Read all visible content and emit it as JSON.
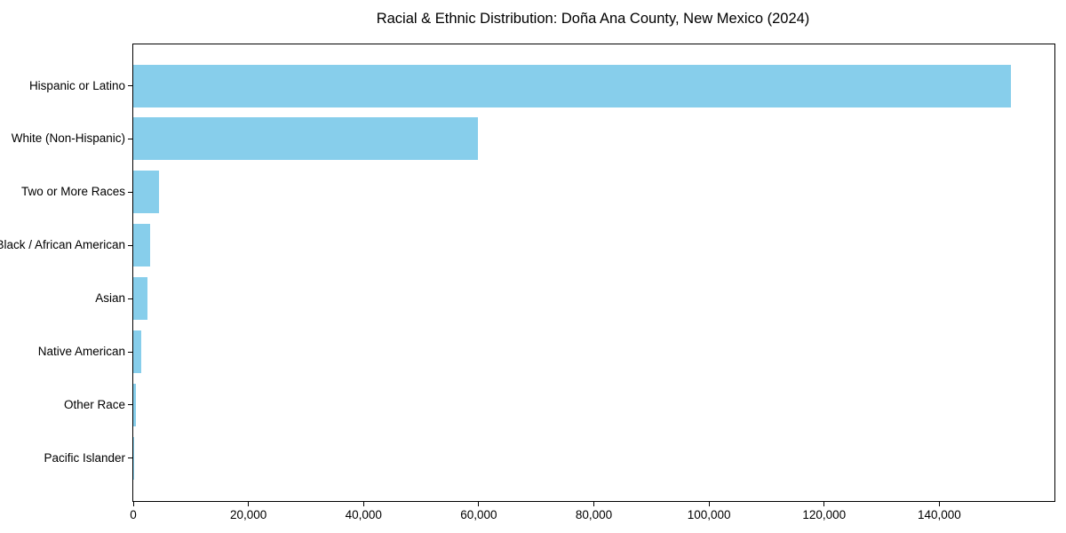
{
  "chart_data": {
    "type": "bar",
    "orientation": "horizontal",
    "title": "Racial & Ethnic Distribution: Doña Ana County, New Mexico (2024)",
    "categories": [
      "Hispanic or Latino",
      "White (Non-Hispanic)",
      "Two or More Races",
      "Black / African American",
      "Asian",
      "Native American",
      "Other Race",
      "Pacific Islander"
    ],
    "values": [
      152400,
      59900,
      4400,
      3000,
      2500,
      1350,
      500,
      100
    ],
    "xlabel": "",
    "ylabel": "",
    "xlim": [
      0,
      160000
    ],
    "xticks": [
      0,
      20000,
      40000,
      60000,
      80000,
      100000,
      120000,
      140000
    ],
    "xtick_labels": [
      "0",
      "20,000",
      "40,000",
      "60,000",
      "80,000",
      "100,000",
      "120,000",
      "140,000"
    ],
    "bar_color": "#87CEEB",
    "axis_color": "#000000",
    "text_color": "#000000",
    "background": "#FFFFFF",
    "grid": false,
    "legend": null
  }
}
